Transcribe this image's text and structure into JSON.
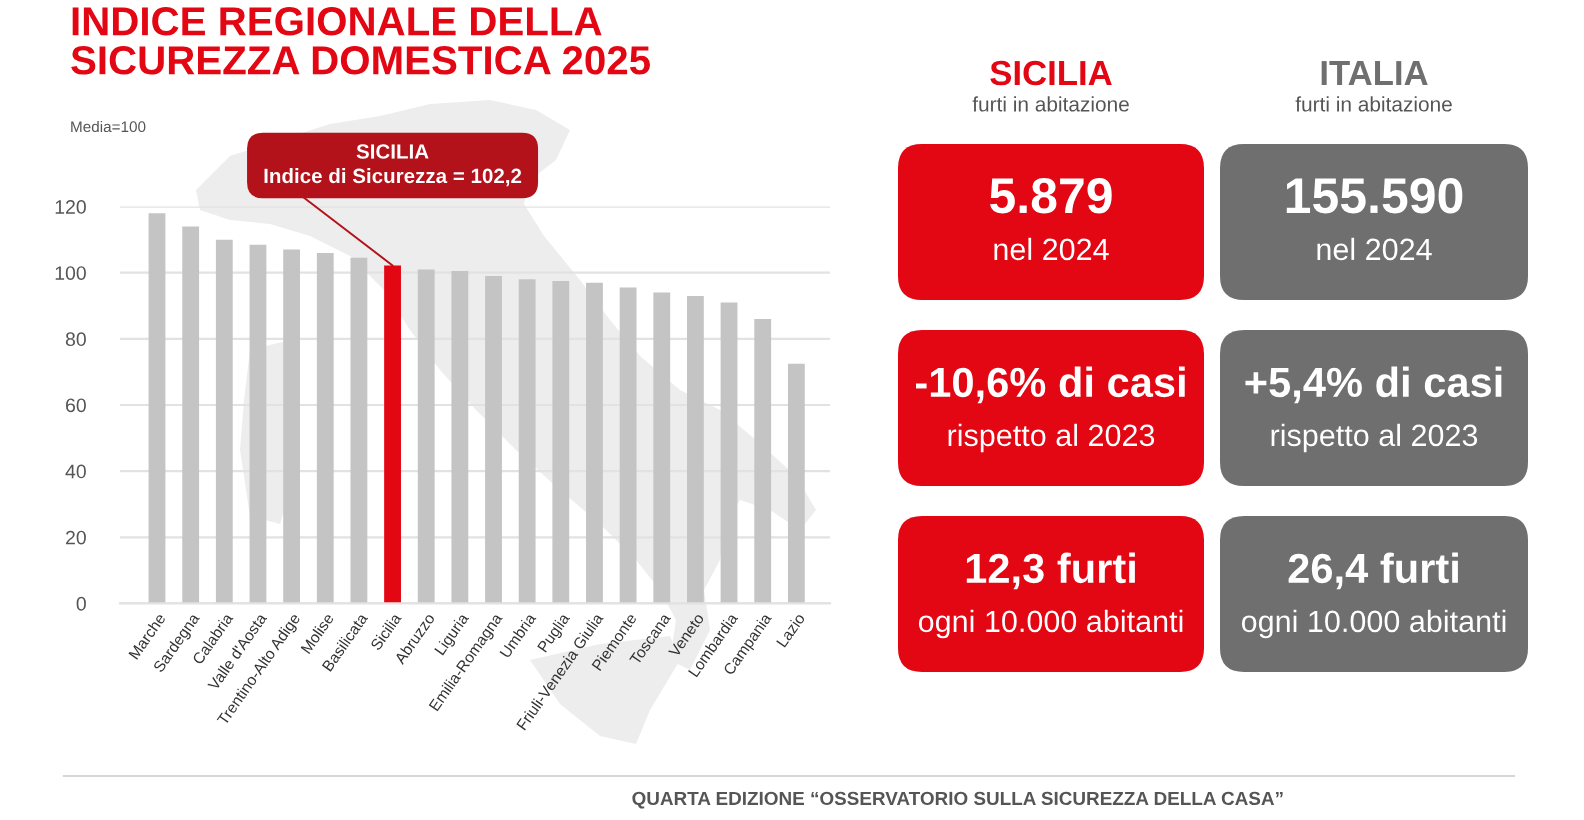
{
  "chart_data": [
    {
      "type": "bar",
      "title": "INDICE REGIONALE DELLA\nSICUREZZA DOMESTICA 2025",
      "categories": [
        "Marche",
        "Sardegna",
        "Calabria",
        "Valle d'Aosta",
        "Trentino-Alto Adige",
        "Molise",
        "Basilicata",
        "Sicilia",
        "Abruzzo",
        "Liguria",
        "Emilia-Romagna",
        "Umbria",
        "Puglia",
        "Friuli-Venezia Giulia",
        "Piemonte",
        "Toscana",
        "Veneto",
        "Lombardia",
        "Campania",
        "Lazio"
      ],
      "values": [
        118,
        114,
        110,
        108.5,
        107,
        106,
        104.5,
        102.2,
        101,
        100.5,
        99,
        98,
        97.5,
        97,
        95.5,
        94,
        93,
        91,
        86,
        72.5
      ],
      "colors": [
        "#c4c4c4",
        "#c4c4c4",
        "#c4c4c4",
        "#c4c4c4",
        "#c4c4c4",
        "#c4c4c4",
        "#c4c4c4",
        "#e30613",
        "#c4c4c4",
        "#c4c4c4",
        "#c4c4c4",
        "#c4c4c4",
        "#c4c4c4",
        "#c4c4c4",
        "#c4c4c4",
        "#c4c4c4",
        "#c4c4c4",
        "#c4c4c4",
        "#c4c4c4",
        "#c4c4c4"
      ],
      "ylim": [
        0,
        120
      ],
      "yticks": [
        0,
        20,
        40,
        60,
        80,
        100,
        120
      ],
      "grid": "y",
      "annotations": [
        "Media=100",
        {
          "text": "SICILIA\nIndice di Sicurezza = 102,2",
          "x": "Sicilia",
          "y": 102.2
        },
        "QUARTA EDIZIONE “OSSERVATORIO SULLA SICUREZZA DELLA CASA”"
      ]
    },
    {
      "type": "other",
      "title": "SICILIA",
      "subtitle": "furti in abitazione",
      "color": "#e30613",
      "annotations": [
        "5.879",
        "nel 2024",
        "-10,6% di casi",
        "rispetto al 2023",
        "12,3 furti",
        "ogni 10.000 abitanti"
      ]
    },
    {
      "type": "other",
      "title": "ITALIA",
      "subtitle": "furti in abitazione",
      "color": "#6f6f6f",
      "annotations": [
        "155.590",
        "nel 2024",
        "+5,4% di casi",
        "rispetto al 2023",
        "26,4 furti",
        "ogni 10.000 abitanti"
      ]
    }
  ]
}
